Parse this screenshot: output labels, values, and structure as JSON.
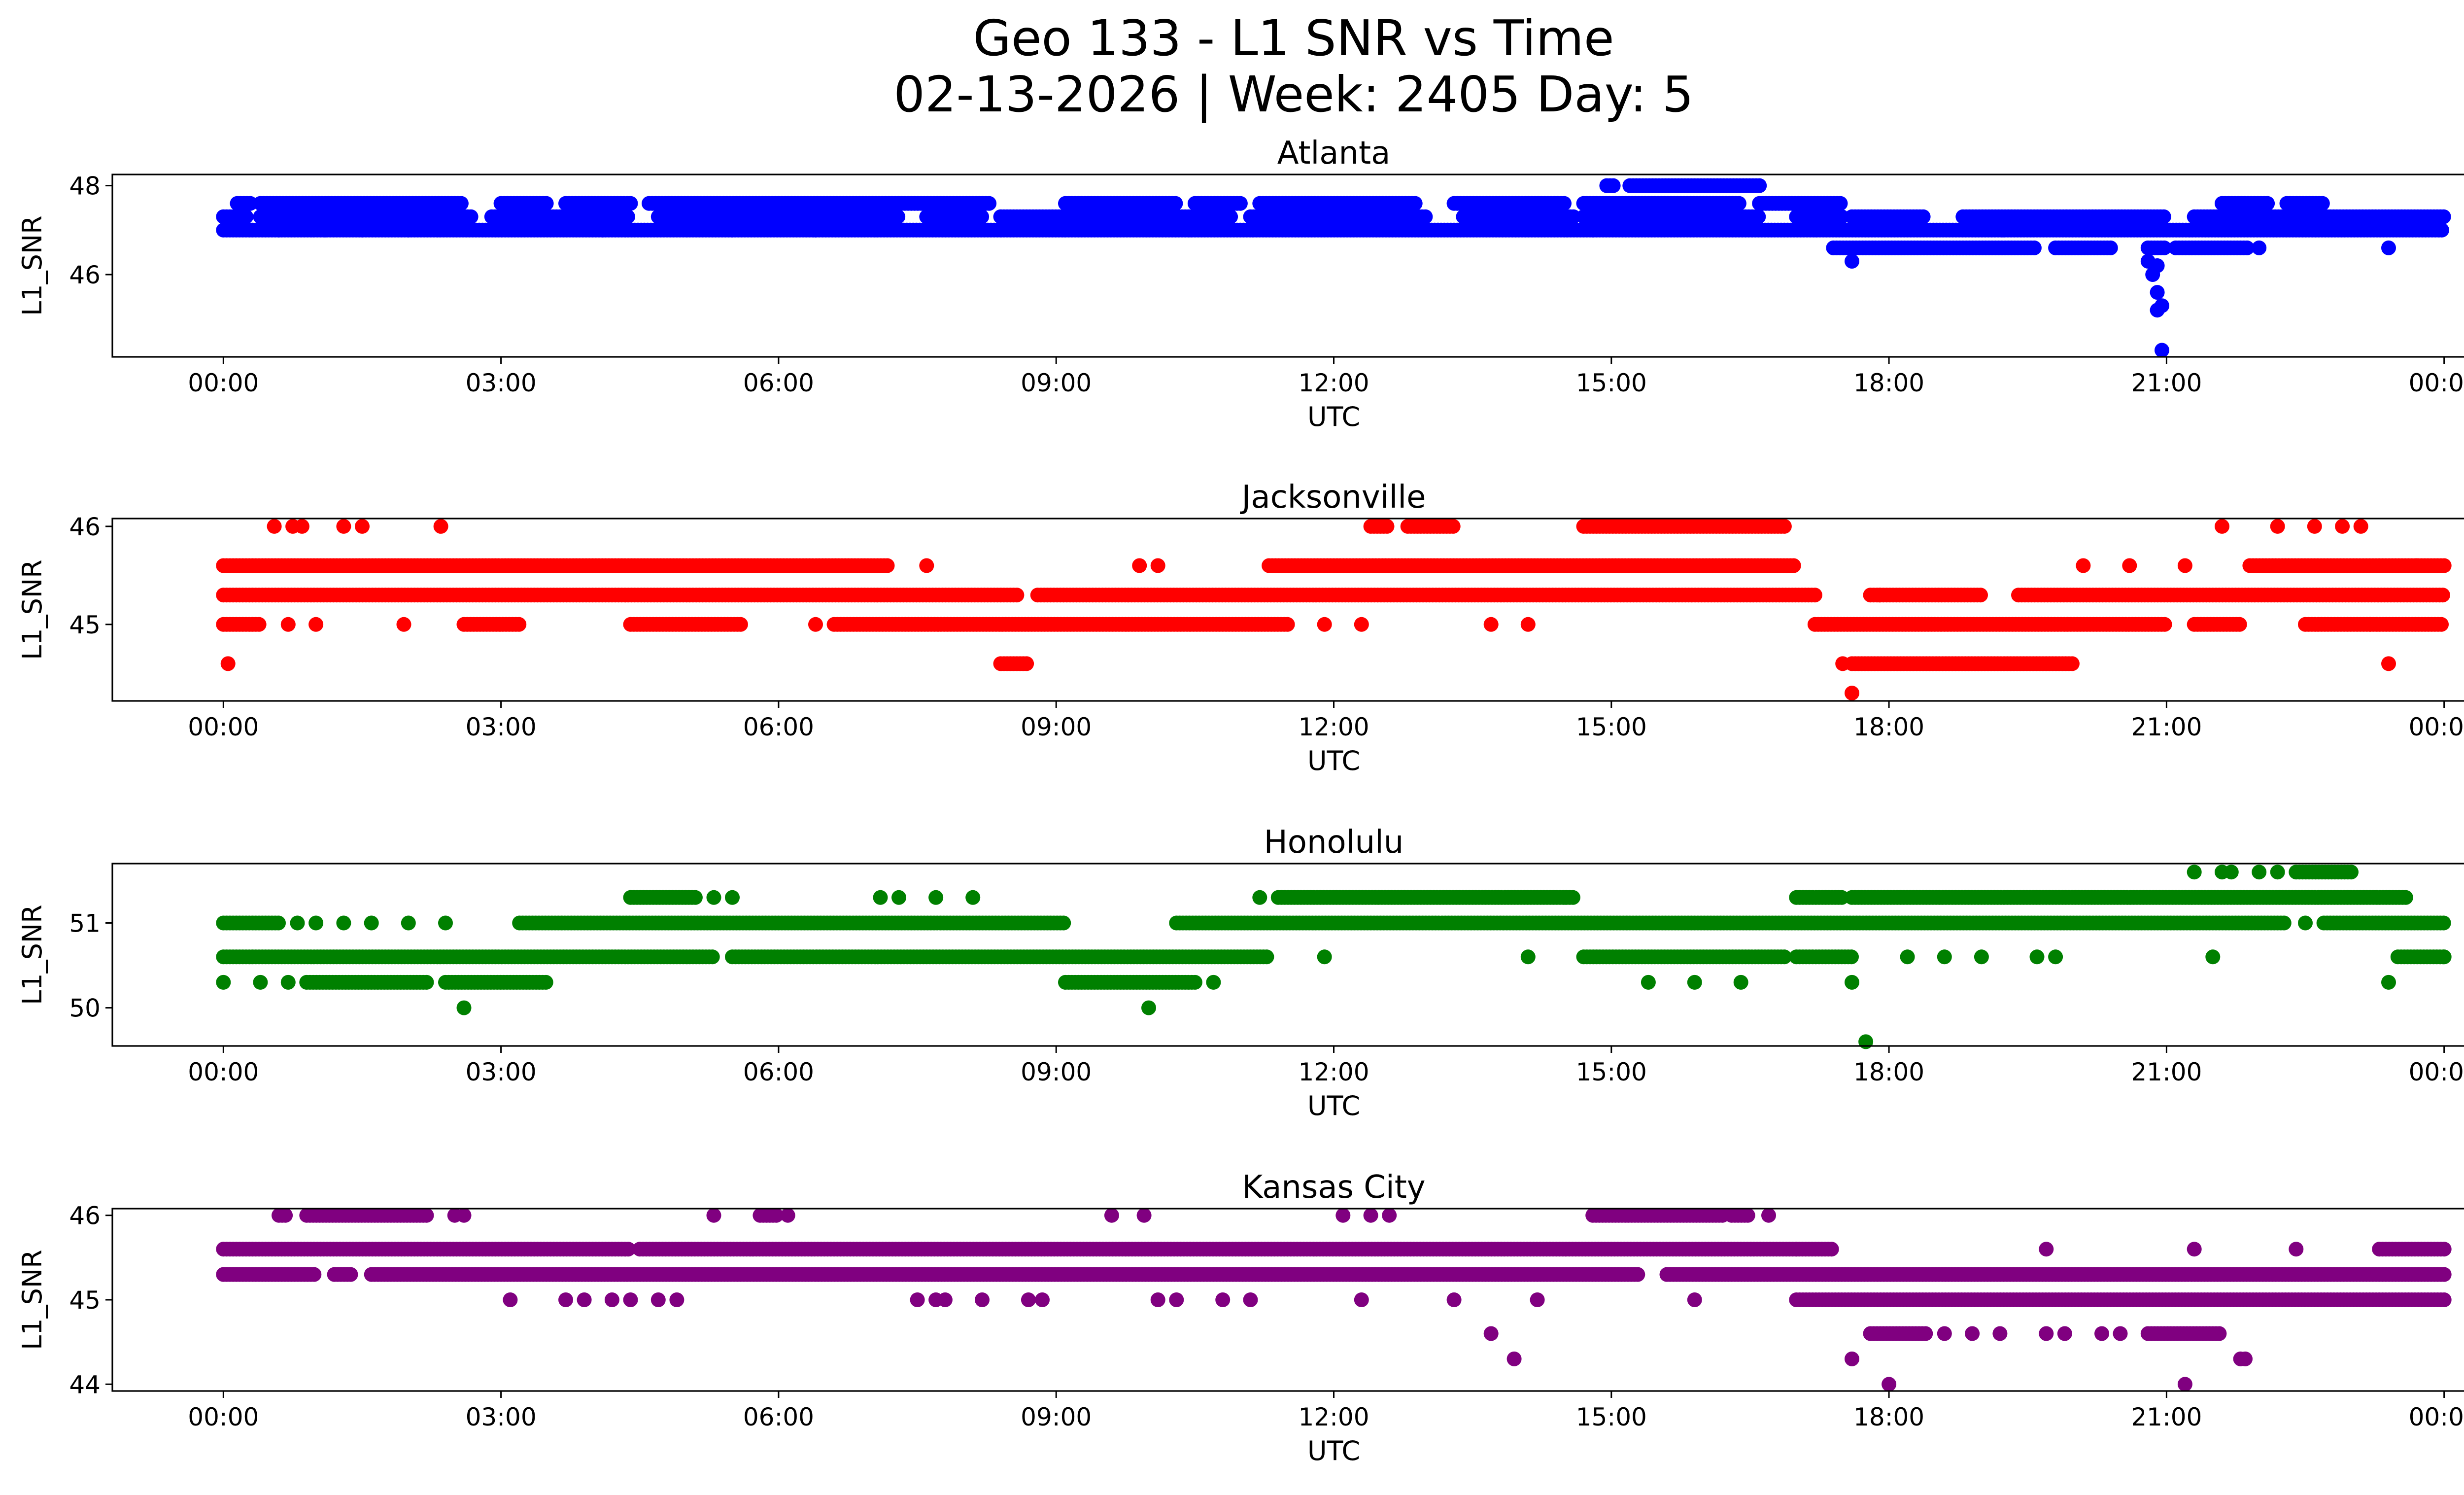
{
  "title_line1": "Geo 133 - L1 SNR vs Time",
  "title_line2": "02-13-2026 | Week: 2405 Day: 5",
  "chart_data": [
    {
      "type": "scatter",
      "title": "Atlanta",
      "xlabel": "UTC",
      "ylabel": "L1_SNR",
      "color": "#0000ff",
      "xlim_hours": [
        -1.2,
        25.2
      ],
      "ylim": [
        44.15,
        48.25
      ],
      "yticks": [
        46,
        48
      ],
      "ytick_labels": [
        "46",
        "48"
      ],
      "xticks_hours": [
        0,
        3,
        6,
        9,
        12,
        15,
        18,
        21,
        24
      ],
      "xtick_labels": [
        "00:00",
        "03:00",
        "06:00",
        "09:00",
        "12:00",
        "15:00",
        "18:00",
        "21:00",
        "00:00"
      ],
      "levels": [
        {
          "y": 47.0,
          "runs": [
            [
              0.0,
              24.0
            ]
          ]
        },
        {
          "y": 47.3,
          "runs": [
            [
              0.0,
              0.25
            ],
            [
              0.4,
              2.7
            ],
            [
              2.9,
              4.4
            ],
            [
              4.7,
              7.3
            ],
            [
              7.6,
              8.2
            ],
            [
              8.4,
              10.9
            ],
            [
              11.1,
              13.0
            ],
            [
              13.4,
              14.6
            ],
            [
              14.7,
              16.6
            ],
            [
              17.0,
              17.5
            ],
            [
              17.6,
              18.4
            ],
            [
              18.8,
              21.0
            ],
            [
              21.3,
              24.0
            ]
          ]
        },
        {
          "y": 47.6,
          "runs": [
            [
              0.15,
              0.3
            ],
            [
              0.4,
              2.6
            ],
            [
              3.0,
              3.5
            ],
            [
              3.7,
              4.4
            ],
            [
              4.6,
              8.3
            ],
            [
              9.1,
              10.3
            ],
            [
              10.5,
              11.0
            ],
            [
              11.2,
              12.9
            ],
            [
              13.3,
              14.5
            ],
            [
              14.7,
              16.4
            ],
            [
              16.6,
              17.5
            ],
            [
              21.6,
              22.1
            ],
            [
              22.3,
              22.7
            ]
          ]
        },
        {
          "y": 48.0,
          "runs": [
            [
              14.95,
              15.05
            ],
            [
              15.2,
              16.6
            ]
          ]
        },
        {
          "y": 46.6,
          "runs": [
            [
              17.4,
              19.6
            ],
            [
              19.8,
              20.4
            ],
            [
              20.8,
              21.0
            ],
            [
              21.1,
              21.9
            ]
          ]
        }
      ],
      "points": [
        {
          "x": 0.6,
          "y": 47.0
        },
        {
          "x": 1.1,
          "y": 47.0
        },
        {
          "x": 1.5,
          "y": 47.0
        },
        {
          "x": 2.0,
          "y": 47.0
        },
        {
          "x": 4.1,
          "y": 47.0
        },
        {
          "x": 5.5,
          "y": 47.0
        },
        {
          "x": 6.4,
          "y": 47.0
        },
        {
          "x": 14.8,
          "y": 47.0
        },
        {
          "x": 23.4,
          "y": 46.6
        },
        {
          "x": 22.0,
          "y": 46.6
        },
        {
          "x": 17.6,
          "y": 46.3
        },
        {
          "x": 20.8,
          "y": 46.3
        },
        {
          "x": 20.85,
          "y": 46.0
        },
        {
          "x": 20.9,
          "y": 46.2
        },
        {
          "x": 20.9,
          "y": 45.6
        },
        {
          "x": 20.9,
          "y": 45.2
        },
        {
          "x": 20.95,
          "y": 45.3
        },
        {
          "x": 20.95,
          "y": 44.3
        },
        {
          "x": 15.8,
          "y": 47.3
        },
        {
          "x": 16.3,
          "y": 47.3
        }
      ]
    },
    {
      "type": "scatter",
      "title": "Jacksonville",
      "xlabel": "UTC",
      "ylabel": "L1_SNR",
      "color": "#ff0000",
      "xlim_hours": [
        -1.2,
        25.2
      ],
      "ylim": [
        44.22,
        46.08
      ],
      "yticks": [
        45,
        46
      ],
      "ytick_labels": [
        "45",
        "46"
      ],
      "xticks_hours": [
        0,
        3,
        6,
        9,
        12,
        15,
        18,
        21,
        24
      ],
      "xtick_labels": [
        "00:00",
        "03:00",
        "06:00",
        "09:00",
        "12:00",
        "15:00",
        "18:00",
        "21:00",
        "00:00"
      ],
      "levels": [
        {
          "y": 45.6,
          "runs": [
            [
              0.0,
              7.2
            ],
            [
              11.3,
              17.0
            ],
            [
              21.9,
              24.0
            ]
          ]
        },
        {
          "y": 45.3,
          "runs": [
            [
              0.0,
              8.6
            ],
            [
              8.8,
              17.2
            ],
            [
              17.8,
              19.0
            ],
            [
              19.4,
              24.0
            ]
          ]
        },
        {
          "y": 45.0,
          "runs": [
            [
              0.0,
              0.4
            ],
            [
              2.6,
              3.2
            ],
            [
              4.4,
              5.6
            ],
            [
              6.6,
              11.5
            ],
            [
              17.2,
              21.0
            ],
            [
              21.3,
              21.8
            ],
            [
              22.5,
              24.0
            ]
          ]
        },
        {
          "y": 46.0,
          "runs": [
            [
              12.4,
              12.6
            ],
            [
              12.8,
              13.3
            ],
            [
              14.7,
              16.9
            ]
          ]
        },
        {
          "y": 44.6,
          "runs": [
            [
              8.4,
              8.7
            ],
            [
              17.6,
              20.0
            ]
          ]
        }
      ],
      "points": [
        {
          "x": 0.05,
          "y": 44.6
        },
        {
          "x": 0.55,
          "y": 46.0
        },
        {
          "x": 0.75,
          "y": 46.0
        },
        {
          "x": 0.85,
          "y": 46.0
        },
        {
          "x": 1.3,
          "y": 46.0
        },
        {
          "x": 1.5,
          "y": 46.0
        },
        {
          "x": 2.35,
          "y": 46.0
        },
        {
          "x": 0.7,
          "y": 45.0
        },
        {
          "x": 1.0,
          "y": 45.0
        },
        {
          "x": 1.95,
          "y": 45.0
        },
        {
          "x": 6.4,
          "y": 45.0
        },
        {
          "x": 11.9,
          "y": 45.0
        },
        {
          "x": 12.3,
          "y": 45.0
        },
        {
          "x": 13.7,
          "y": 45.0
        },
        {
          "x": 14.1,
          "y": 45.0
        },
        {
          "x": 9.9,
          "y": 45.6
        },
        {
          "x": 10.1,
          "y": 45.6
        },
        {
          "x": 7.6,
          "y": 45.6
        },
        {
          "x": 17.5,
          "y": 44.6
        },
        {
          "x": 17.6,
          "y": 44.3
        },
        {
          "x": 17.9,
          "y": 45.3
        },
        {
          "x": 20.1,
          "y": 45.6
        },
        {
          "x": 20.6,
          "y": 45.6
        },
        {
          "x": 21.2,
          "y": 45.6
        },
        {
          "x": 21.6,
          "y": 46.0
        },
        {
          "x": 22.2,
          "y": 46.0
        },
        {
          "x": 22.6,
          "y": 46.0
        },
        {
          "x": 22.9,
          "y": 46.0
        },
        {
          "x": 23.1,
          "y": 46.0
        },
        {
          "x": 23.4,
          "y": 44.6
        },
        {
          "x": 23.2,
          "y": 45.0
        },
        {
          "x": 23.7,
          "y": 45.6
        }
      ]
    },
    {
      "type": "scatter",
      "title": "Honolulu",
      "xlabel": "UTC",
      "ylabel": "L1_SNR",
      "color": "#008000",
      "xlim_hours": [
        -1.2,
        25.2
      ],
      "ylim": [
        49.55,
        51.7
      ],
      "yticks": [
        50,
        51
      ],
      "ytick_labels": [
        "50",
        "51"
      ],
      "xticks_hours": [
        0,
        3,
        6,
        9,
        12,
        15,
        18,
        21,
        24
      ],
      "xtick_labels": [
        "00:00",
        "03:00",
        "06:00",
        "09:00",
        "12:00",
        "15:00",
        "18:00",
        "21:00",
        "00:00"
      ],
      "levels": [
        {
          "y": 50.6,
          "runs": [
            [
              0.0,
              5.3
            ],
            [
              5.5,
              11.3
            ],
            [
              14.7,
              16.9
            ],
            [
              17.0,
              17.6
            ],
            [
              23.5,
              24.0
            ]
          ]
        },
        {
          "y": 51.0,
          "runs": [
            [
              0.0,
              0.6
            ],
            [
              3.2,
              9.1
            ],
            [
              10.3,
              22.3
            ],
            [
              22.7,
              24.0
            ]
          ]
        },
        {
          "y": 50.3,
          "runs": [
            [
              0.9,
              2.2
            ],
            [
              2.4,
              3.5
            ],
            [
              9.1,
              10.5
            ]
          ]
        },
        {
          "y": 51.3,
          "runs": [
            [
              4.4,
              5.1
            ],
            [
              11.4,
              14.6
            ],
            [
              17.0,
              17.5
            ],
            [
              17.6,
              23.6
            ]
          ]
        },
        {
          "y": 51.6,
          "runs": [
            [
              22.4,
              23.0
            ]
          ]
        }
      ],
      "points": [
        {
          "x": 0.0,
          "y": 50.3
        },
        {
          "x": 0.4,
          "y": 50.3
        },
        {
          "x": 0.7,
          "y": 50.3
        },
        {
          "x": 0.8,
          "y": 51.0
        },
        {
          "x": 1.0,
          "y": 51.0
        },
        {
          "x": 1.3,
          "y": 51.0
        },
        {
          "x": 1.6,
          "y": 51.0
        },
        {
          "x": 2.0,
          "y": 51.0
        },
        {
          "x": 2.4,
          "y": 51.0
        },
        {
          "x": 2.6,
          "y": 50.0
        },
        {
          "x": 5.3,
          "y": 51.3
        },
        {
          "x": 5.5,
          "y": 51.3
        },
        {
          "x": 7.1,
          "y": 51.3
        },
        {
          "x": 7.3,
          "y": 51.3
        },
        {
          "x": 7.7,
          "y": 51.3
        },
        {
          "x": 8.1,
          "y": 51.3
        },
        {
          "x": 10.0,
          "y": 50.0
        },
        {
          "x": 10.7,
          "y": 50.3
        },
        {
          "x": 11.2,
          "y": 51.3
        },
        {
          "x": 11.9,
          "y": 50.6
        },
        {
          "x": 14.1,
          "y": 50.6
        },
        {
          "x": 15.4,
          "y": 50.3
        },
        {
          "x": 15.9,
          "y": 50.3
        },
        {
          "x": 16.4,
          "y": 50.3
        },
        {
          "x": 17.6,
          "y": 50.3
        },
        {
          "x": 17.75,
          "y": 49.6
        },
        {
          "x": 18.2,
          "y": 50.6
        },
        {
          "x": 18.6,
          "y": 50.6
        },
        {
          "x": 19.0,
          "y": 50.6
        },
        {
          "x": 19.6,
          "y": 50.6
        },
        {
          "x": 19.8,
          "y": 50.6
        },
        {
          "x": 21.3,
          "y": 51.6
        },
        {
          "x": 21.6,
          "y": 51.6
        },
        {
          "x": 21.7,
          "y": 51.6
        },
        {
          "x": 22.0,
          "y": 51.6
        },
        {
          "x": 22.2,
          "y": 51.6
        },
        {
          "x": 21.5,
          "y": 50.6
        },
        {
          "x": 22.5,
          "y": 51.0
        },
        {
          "x": 23.4,
          "y": 50.3
        },
        {
          "x": 24.0,
          "y": 50.6
        }
      ]
    },
    {
      "type": "scatter",
      "title": "Kansas City",
      "xlabel": "UTC",
      "ylabel": "L1_SNR",
      "color": "#800080",
      "xlim_hours": [
        -1.2,
        25.2
      ],
      "ylim": [
        43.92,
        46.08
      ],
      "yticks": [
        44,
        45,
        46
      ],
      "ytick_labels": [
        "44",
        "45",
        "46"
      ],
      "xticks_hours": [
        0,
        3,
        6,
        9,
        12,
        15,
        18,
        21,
        24
      ],
      "xtick_labels": [
        "00:00",
        "03:00",
        "06:00",
        "09:00",
        "12:00",
        "15:00",
        "18:00",
        "21:00",
        "00:00"
      ],
      "levels": [
        {
          "y": 45.6,
          "runs": [
            [
              0.0,
              4.4
            ],
            [
              4.5,
              17.4
            ],
            [
              23.3,
              24.0
            ]
          ]
        },
        {
          "y": 45.3,
          "runs": [
            [
              0.0,
              1.0
            ],
            [
              1.2,
              1.4
            ],
            [
              1.6,
              15.3
            ],
            [
              15.6,
              24.0
            ]
          ]
        },
        {
          "y": 45.0,
          "runs": [
            [
              17.0,
              24.0
            ]
          ]
        },
        {
          "y": 46.0,
          "runs": [
            [
              0.6,
              0.7
            ],
            [
              0.9,
              2.2
            ],
            [
              5.8,
              6.0
            ],
            [
              14.8,
              16.2
            ],
            [
              16.3,
              16.5
            ]
          ]
        },
        {
          "y": 44.6,
          "runs": [
            [
              17.8,
              18.4
            ],
            [
              20.8,
              21.6
            ]
          ]
        }
      ],
      "points": [
        {
          "x": 2.5,
          "y": 46.0
        },
        {
          "x": 2.6,
          "y": 46.0
        },
        {
          "x": 5.3,
          "y": 46.0
        },
        {
          "x": 6.1,
          "y": 46.0
        },
        {
          "x": 9.6,
          "y": 46.0
        },
        {
          "x": 9.95,
          "y": 46.0
        },
        {
          "x": 12.1,
          "y": 46.0
        },
        {
          "x": 12.4,
          "y": 46.0
        },
        {
          "x": 12.6,
          "y": 46.0
        },
        {
          "x": 16.7,
          "y": 46.0
        },
        {
          "x": 3.1,
          "y": 45.0
        },
        {
          "x": 3.7,
          "y": 45.0
        },
        {
          "x": 3.9,
          "y": 45.0
        },
        {
          "x": 4.2,
          "y": 45.0
        },
        {
          "x": 4.4,
          "y": 45.0
        },
        {
          "x": 4.7,
          "y": 45.0
        },
        {
          "x": 4.9,
          "y": 45.0
        },
        {
          "x": 7.5,
          "y": 45.0
        },
        {
          "x": 7.7,
          "y": 45.0
        },
        {
          "x": 7.8,
          "y": 45.0
        },
        {
          "x": 8.2,
          "y": 45.0
        },
        {
          "x": 8.7,
          "y": 45.0
        },
        {
          "x": 8.85,
          "y": 45.0
        },
        {
          "x": 10.1,
          "y": 45.0
        },
        {
          "x": 10.3,
          "y": 45.0
        },
        {
          "x": 10.8,
          "y": 45.0
        },
        {
          "x": 11.1,
          "y": 45.0
        },
        {
          "x": 12.3,
          "y": 45.0
        },
        {
          "x": 13.3,
          "y": 45.0
        },
        {
          "x": 14.2,
          "y": 45.0
        },
        {
          "x": 15.9,
          "y": 45.0
        },
        {
          "x": 13.7,
          "y": 44.6
        },
        {
          "x": 13.95,
          "y": 44.3
        },
        {
          "x": 17.6,
          "y": 44.3
        },
        {
          "x": 18.0,
          "y": 44.0
        },
        {
          "x": 18.6,
          "y": 44.6
        },
        {
          "x": 18.9,
          "y": 44.6
        },
        {
          "x": 19.2,
          "y": 44.6
        },
        {
          "x": 19.7,
          "y": 44.6
        },
        {
          "x": 19.9,
          "y": 44.6
        },
        {
          "x": 20.3,
          "y": 44.6
        },
        {
          "x": 20.5,
          "y": 44.6
        },
        {
          "x": 21.2,
          "y": 44.0
        },
        {
          "x": 21.8,
          "y": 44.3
        },
        {
          "x": 21.85,
          "y": 44.3
        },
        {
          "x": 19.7,
          "y": 45.6
        },
        {
          "x": 21.3,
          "y": 45.6
        },
        {
          "x": 22.4,
          "y": 45.6
        },
        {
          "x": 17.0,
          "y": 45.6
        }
      ]
    }
  ]
}
